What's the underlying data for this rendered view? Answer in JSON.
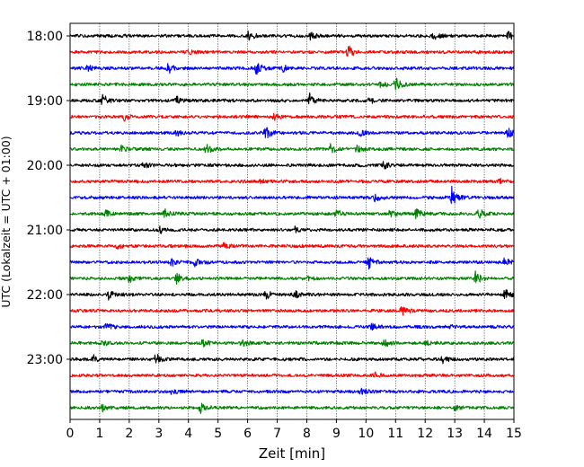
{
  "chart_data": {
    "type": "line",
    "title": "",
    "xlabel": "Zeit  [min]",
    "ylabel": "UTC (Lokalzeit = UTC + 01:00)",
    "xlim": [
      0,
      15
    ],
    "x_ticks": [
      "0",
      "1",
      "2",
      "3",
      "4",
      "5",
      "6",
      "7",
      "8",
      "9",
      "10",
      "11",
      "12",
      "13",
      "14",
      "15"
    ],
    "y_ticks": [
      "18:00",
      "19:00",
      "20:00",
      "21:00",
      "22:00",
      "23:00"
    ],
    "row_interval_minutes": 15,
    "row_colors": [
      "#000000",
      "#ff0000",
      "#0000ff",
      "#008000"
    ],
    "grid": "vertical dotted",
    "legend": "none",
    "series": [
      {
        "start": "18:00",
        "color": "#000000",
        "events": [
          {
            "x": 6.0,
            "a": 0.7
          },
          {
            "x": 8.1,
            "a": 0.6
          },
          {
            "x": 12.3,
            "a": 0.5
          },
          {
            "x": 14.8,
            "a": 0.6
          }
        ]
      },
      {
        "start": "18:15",
        "color": "#ff0000",
        "events": [
          {
            "x": 9.4,
            "a": 1.0
          },
          {
            "x": 4.0,
            "a": 0.4
          }
        ]
      },
      {
        "start": "18:30",
        "color": "#0000ff",
        "events": [
          {
            "x": 3.3,
            "a": 0.9
          },
          {
            "x": 6.3,
            "a": 1.1
          },
          {
            "x": 7.2,
            "a": 0.5
          },
          {
            "x": 0.6,
            "a": 0.4
          }
        ]
      },
      {
        "start": "18:45",
        "color": "#008000",
        "events": [
          {
            "x": 11.0,
            "a": 1.0
          },
          {
            "x": 10.5,
            "a": 0.5
          }
        ]
      },
      {
        "start": "19:00",
        "color": "#000000",
        "events": [
          {
            "x": 1.1,
            "a": 0.9
          },
          {
            "x": 3.6,
            "a": 0.6
          },
          {
            "x": 8.1,
            "a": 1.1
          },
          {
            "x": 10.1,
            "a": 0.5
          }
        ]
      },
      {
        "start": "19:15",
        "color": "#ff0000",
        "events": [
          {
            "x": 1.8,
            "a": 0.7
          },
          {
            "x": 6.9,
            "a": 0.6
          }
        ]
      },
      {
        "start": "19:30",
        "color": "#0000ff",
        "events": [
          {
            "x": 6.6,
            "a": 1.2
          },
          {
            "x": 9.8,
            "a": 0.5
          },
          {
            "x": 14.8,
            "a": 0.7
          },
          {
            "x": 3.6,
            "a": 0.4
          }
        ]
      },
      {
        "start": "19:45",
        "color": "#008000",
        "events": [
          {
            "x": 1.7,
            "a": 0.6
          },
          {
            "x": 4.6,
            "a": 1.0
          },
          {
            "x": 8.8,
            "a": 0.7
          },
          {
            "x": 9.7,
            "a": 0.6
          }
        ]
      },
      {
        "start": "20:00",
        "color": "#000000",
        "events": [
          {
            "x": 2.5,
            "a": 0.5
          },
          {
            "x": 10.6,
            "a": 0.5
          }
        ]
      },
      {
        "start": "20:15",
        "color": "#ff0000",
        "events": [
          {
            "x": 14.5,
            "a": 0.4
          },
          {
            "x": 6.4,
            "a": 0.3
          }
        ]
      },
      {
        "start": "20:30",
        "color": "#0000ff",
        "events": [
          {
            "x": 12.9,
            "a": 1.6
          },
          {
            "x": 10.3,
            "a": 0.6
          }
        ]
      },
      {
        "start": "20:45",
        "color": "#008000",
        "events": [
          {
            "x": 1.2,
            "a": 0.5
          },
          {
            "x": 3.2,
            "a": 0.7
          },
          {
            "x": 9.0,
            "a": 0.6
          },
          {
            "x": 10.8,
            "a": 0.5
          },
          {
            "x": 11.7,
            "a": 0.8
          },
          {
            "x": 13.8,
            "a": 0.8
          }
        ]
      },
      {
        "start": "21:00",
        "color": "#000000",
        "events": [
          {
            "x": 3.0,
            "a": 0.6
          },
          {
            "x": 7.6,
            "a": 0.4
          }
        ]
      },
      {
        "start": "21:15",
        "color": "#ff0000",
        "events": [
          {
            "x": 5.2,
            "a": 0.4
          },
          {
            "x": 1.6,
            "a": 0.3
          }
        ]
      },
      {
        "start": "21:30",
        "color": "#0000ff",
        "events": [
          {
            "x": 3.4,
            "a": 0.6
          },
          {
            "x": 4.2,
            "a": 0.6
          },
          {
            "x": 10.1,
            "a": 0.9
          },
          {
            "x": 14.7,
            "a": 0.8
          }
        ]
      },
      {
        "start": "21:45",
        "color": "#008000",
        "events": [
          {
            "x": 2.0,
            "a": 0.6
          },
          {
            "x": 3.6,
            "a": 0.8
          },
          {
            "x": 13.7,
            "a": 1.1
          },
          {
            "x": 8.0,
            "a": 0.4
          }
        ]
      },
      {
        "start": "22:00",
        "color": "#000000",
        "events": [
          {
            "x": 1.3,
            "a": 0.7
          },
          {
            "x": 6.6,
            "a": 0.8
          },
          {
            "x": 7.6,
            "a": 0.6
          },
          {
            "x": 14.7,
            "a": 0.9
          }
        ]
      },
      {
        "start": "22:15",
        "color": "#ff0000",
        "events": [
          {
            "x": 11.2,
            "a": 0.7
          }
        ]
      },
      {
        "start": "22:30",
        "color": "#0000ff",
        "events": [
          {
            "x": 1.2,
            "a": 0.6
          },
          {
            "x": 10.2,
            "a": 0.5
          },
          {
            "x": 12.8,
            "a": 0.4
          }
        ]
      },
      {
        "start": "22:45",
        "color": "#008000",
        "events": [
          {
            "x": 1.1,
            "a": 0.5
          },
          {
            "x": 4.5,
            "a": 0.7
          },
          {
            "x": 5.8,
            "a": 0.7
          },
          {
            "x": 10.6,
            "a": 0.6
          },
          {
            "x": 12.0,
            "a": 0.4
          }
        ]
      },
      {
        "start": "23:00",
        "color": "#000000",
        "events": [
          {
            "x": 0.8,
            "a": 0.5
          },
          {
            "x": 2.9,
            "a": 0.9
          },
          {
            "x": 12.6,
            "a": 0.5
          }
        ]
      },
      {
        "start": "23:15",
        "color": "#ff0000",
        "events": [
          {
            "x": 10.3,
            "a": 0.4
          }
        ]
      },
      {
        "start": "23:30",
        "color": "#0000ff",
        "events": [
          {
            "x": 3.4,
            "a": 0.4
          },
          {
            "x": 9.8,
            "a": 0.4
          }
        ]
      },
      {
        "start": "23:45",
        "color": "#008000",
        "events": [
          {
            "x": 1.1,
            "a": 0.5
          },
          {
            "x": 4.4,
            "a": 0.8
          },
          {
            "x": 13.0,
            "a": 0.4
          }
        ]
      }
    ]
  }
}
